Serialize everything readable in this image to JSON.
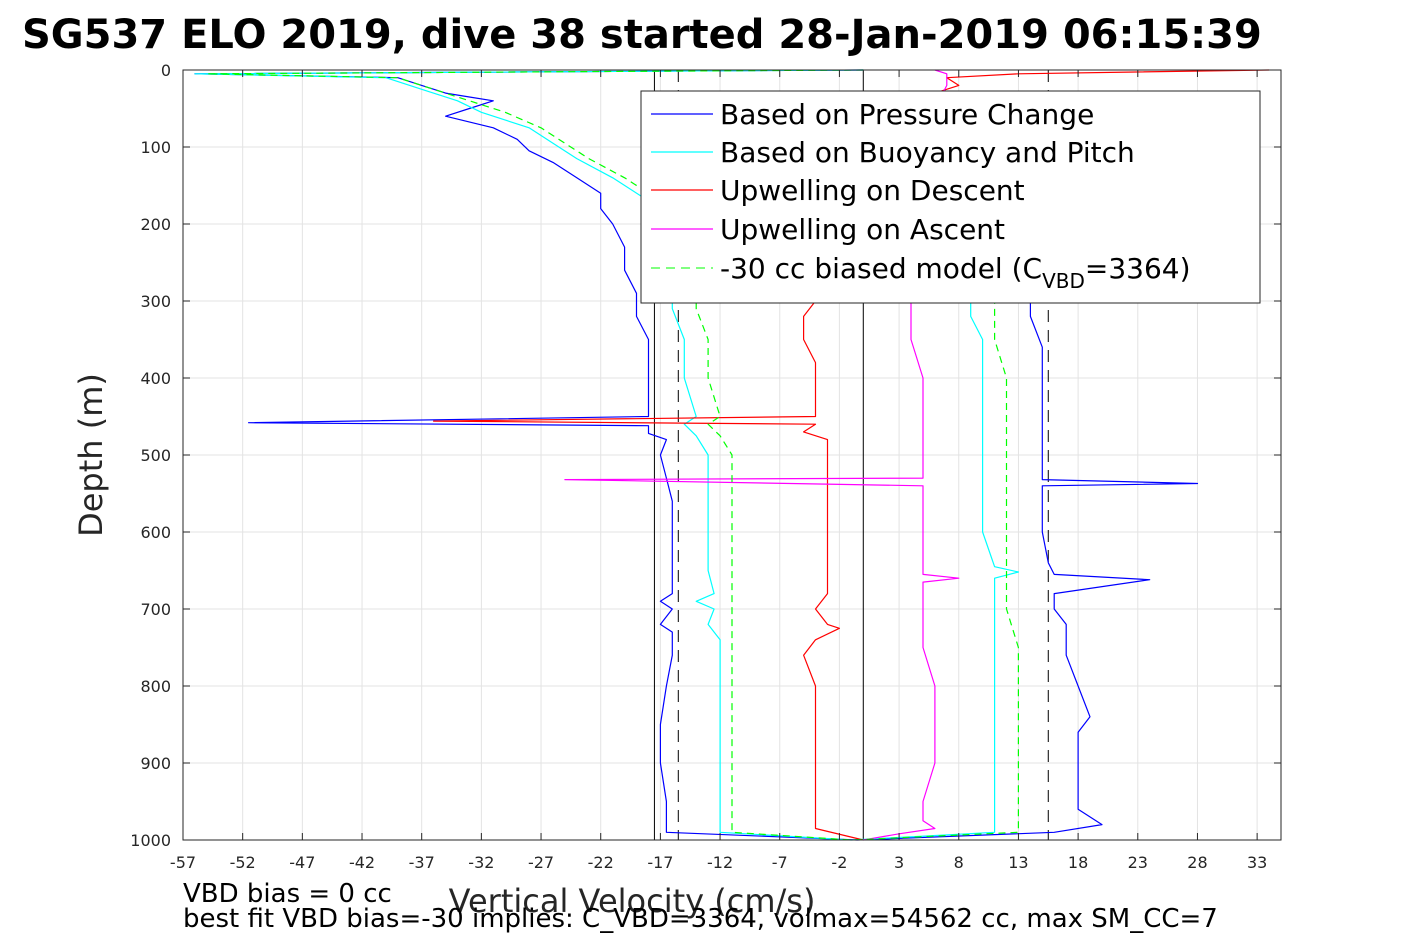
{
  "chart_data": {
    "type": "line",
    "title": "SG537 ELO 2019, dive 38 started 28-Jan-2019 06:15:39",
    "xlabel": "Vertical Velocity (cm/s)",
    "ylabel": "Depth (m)",
    "xlim": [
      -57,
      35
    ],
    "ylim": [
      0,
      1000
    ],
    "y_reversed": true,
    "x_ticks": [
      -57,
      -52,
      -47,
      -42,
      -37,
      -32,
      -27,
      -22,
      -17,
      -12,
      -7,
      -2,
      3,
      8,
      13,
      18,
      23,
      28,
      33
    ],
    "y_ticks": [
      0,
      100,
      200,
      300,
      400,
      500,
      600,
      700,
      800,
      900,
      1000
    ],
    "grid": true,
    "legend_position": "top-right",
    "reference_lines": {
      "solid_x": [
        -17.5,
        0
      ],
      "dashed_x": [
        -15.5,
        15.5
      ]
    },
    "series": [
      {
        "name": "Based on Pressure Change",
        "color": "#0000ff",
        "style": "solid",
        "points": [
          [
            0,
            0
          ],
          [
            -56,
            5
          ],
          [
            -39,
            10
          ],
          [
            -37,
            20
          ],
          [
            -35,
            30
          ],
          [
            -33,
            35
          ],
          [
            -31,
            40
          ],
          [
            -33,
            50
          ],
          [
            -35,
            60
          ],
          [
            -31,
            75
          ],
          [
            -29,
            90
          ],
          [
            -28,
            105
          ],
          [
            -26,
            120
          ],
          [
            -24,
            140
          ],
          [
            -22,
            160
          ],
          [
            -22,
            180
          ],
          [
            -21,
            200
          ],
          [
            -20,
            230
          ],
          [
            -20,
            260
          ],
          [
            -19,
            290
          ],
          [
            -19,
            320
          ],
          [
            -18,
            350
          ],
          [
            -18,
            380
          ],
          [
            -18,
            420
          ],
          [
            -18,
            450
          ],
          [
            -51.5,
            458
          ],
          [
            -18,
            462
          ],
          [
            -18,
            472
          ],
          [
            -16.5,
            480
          ],
          [
            -17,
            500
          ],
          [
            -16.5,
            530
          ],
          [
            -16,
            560
          ],
          [
            -16,
            600
          ],
          [
            -16,
            640
          ],
          [
            -16,
            680
          ],
          [
            -17,
            690
          ],
          [
            -16,
            700
          ],
          [
            -17,
            720
          ],
          [
            -16,
            730
          ],
          [
            -16,
            760
          ],
          [
            -16.5,
            800
          ],
          [
            -17,
            850
          ],
          [
            -17,
            900
          ],
          [
            -16.5,
            950
          ],
          [
            -16.5,
            990
          ],
          [
            -0.5,
            1000
          ],
          [
            16,
            990
          ],
          [
            20,
            980
          ],
          [
            18,
            960
          ],
          [
            18,
            900
          ],
          [
            18,
            860
          ],
          [
            19,
            840
          ],
          [
            18,
            800
          ],
          [
            17,
            760
          ],
          [
            17,
            720
          ],
          [
            16,
            700
          ],
          [
            16,
            680
          ],
          [
            24,
            662
          ],
          [
            16,
            655
          ],
          [
            15.5,
            640
          ],
          [
            15,
            600
          ],
          [
            15,
            560
          ],
          [
            15,
            540
          ],
          [
            28,
            537
          ],
          [
            15,
            532
          ],
          [
            15,
            500
          ],
          [
            15,
            470
          ],
          [
            15,
            440
          ],
          [
            15,
            400
          ],
          [
            15,
            360
          ],
          [
            14,
            320
          ],
          [
            14,
            300
          ]
        ]
      },
      {
        "name": "Based on Buoyancy and Pitch",
        "color": "#00ffff",
        "style": "solid",
        "points": [
          [
            0,
            0
          ],
          [
            -56,
            5
          ],
          [
            -40,
            10
          ],
          [
            -37,
            25
          ],
          [
            -34,
            40
          ],
          [
            -32,
            55
          ],
          [
            -28,
            75
          ],
          [
            -26,
            95
          ],
          [
            -24,
            115
          ],
          [
            -21,
            140
          ],
          [
            -18,
            170
          ],
          [
            -17,
            200
          ],
          [
            -16,
            240
          ],
          [
            -16,
            280
          ],
          [
            -16,
            310
          ],
          [
            -15,
            350
          ],
          [
            -15,
            400
          ],
          [
            -14,
            450
          ],
          [
            -15,
            460
          ],
          [
            -14,
            475
          ],
          [
            -13,
            500
          ],
          [
            -13,
            550
          ],
          [
            -13,
            600
          ],
          [
            -13,
            650
          ],
          [
            -12.5,
            680
          ],
          [
            -14,
            690
          ],
          [
            -12.5,
            700
          ],
          [
            -13,
            720
          ],
          [
            -12,
            740
          ],
          [
            -12,
            780
          ],
          [
            -12,
            820
          ],
          [
            -12,
            860
          ],
          [
            -12,
            900
          ],
          [
            -12,
            950
          ],
          [
            -12,
            990
          ],
          [
            -1,
            1000
          ],
          [
            11,
            990
          ],
          [
            11,
            950
          ],
          [
            11,
            900
          ],
          [
            11,
            850
          ],
          [
            11,
            800
          ],
          [
            11,
            750
          ],
          [
            11,
            700
          ],
          [
            11,
            660
          ],
          [
            13,
            652
          ],
          [
            11,
            645
          ],
          [
            10,
            600
          ],
          [
            10,
            550
          ],
          [
            10,
            500
          ],
          [
            10,
            450
          ],
          [
            10,
            400
          ],
          [
            10,
            350
          ],
          [
            9,
            320
          ],
          [
            9,
            300
          ]
        ]
      },
      {
        "name": "Upwelling on Descent",
        "color": "#ff0000",
        "style": "solid",
        "points": [
          [
            34,
            0
          ],
          [
            13,
            5
          ],
          [
            7,
            10
          ],
          [
            8,
            20
          ],
          [
            6,
            30
          ],
          [
            5,
            40
          ],
          [
            5,
            60
          ],
          [
            4,
            80
          ],
          [
            4,
            100
          ],
          [
            3,
            150
          ],
          [
            2,
            200
          ],
          [
            1,
            250
          ],
          [
            -4,
            300
          ],
          [
            -5,
            320
          ],
          [
            -5,
            350
          ],
          [
            -4,
            380
          ],
          [
            -4,
            420
          ],
          [
            -4,
            450
          ],
          [
            -36,
            456
          ],
          [
            -4,
            460
          ],
          [
            -5,
            470
          ],
          [
            -3,
            480
          ],
          [
            -3,
            500
          ],
          [
            -3,
            550
          ],
          [
            -3,
            600
          ],
          [
            -3,
            650
          ],
          [
            -3,
            680
          ],
          [
            -4,
            700
          ],
          [
            -3,
            720
          ],
          [
            -2,
            725
          ],
          [
            -4,
            740
          ],
          [
            -5,
            760
          ],
          [
            -4,
            800
          ],
          [
            -4,
            850
          ],
          [
            -4,
            900
          ],
          [
            -4,
            950
          ],
          [
            -4,
            985
          ],
          [
            0,
            1000
          ]
        ]
      },
      {
        "name": "Upwelling on Ascent",
        "color": "#ff00ff",
        "style": "solid",
        "points": [
          [
            0,
            1000
          ],
          [
            3,
            992
          ],
          [
            6,
            985
          ],
          [
            5,
            975
          ],
          [
            5,
            950
          ],
          [
            6,
            900
          ],
          [
            6,
            850
          ],
          [
            6,
            800
          ],
          [
            5,
            750
          ],
          [
            5,
            700
          ],
          [
            5,
            665
          ],
          [
            8,
            660
          ],
          [
            5,
            655
          ],
          [
            5,
            640
          ],
          [
            5,
            600
          ],
          [
            5,
            580
          ],
          [
            5,
            540
          ],
          [
            -25,
            532
          ],
          [
            5,
            530
          ],
          [
            5,
            500
          ],
          [
            5,
            450
          ],
          [
            5,
            400
          ],
          [
            4,
            350
          ],
          [
            4,
            300
          ],
          [
            6,
            250
          ],
          [
            7,
            200
          ],
          [
            7,
            150
          ],
          [
            6,
            100
          ],
          [
            6,
            50
          ],
          [
            7,
            20
          ],
          [
            7,
            5
          ],
          [
            6,
            0
          ]
        ]
      },
      {
        "name": "-30 cc biased model (C_VBD=3364)",
        "color": "#00ff00",
        "style": "dashed",
        "points": [
          [
            0,
            0
          ],
          [
            -55,
            5
          ],
          [
            -39,
            10
          ],
          [
            -36,
            25
          ],
          [
            -33,
            40
          ],
          [
            -30,
            55
          ],
          [
            -27,
            75
          ],
          [
            -25,
            95
          ],
          [
            -23,
            115
          ],
          [
            -20,
            140
          ],
          [
            -17,
            170
          ],
          [
            -16,
            200
          ],
          [
            -15,
            240
          ],
          [
            -14,
            280
          ],
          [
            -14,
            310
          ],
          [
            -13,
            350
          ],
          [
            -13,
            400
          ],
          [
            -12,
            450
          ],
          [
            -13,
            460
          ],
          [
            -12,
            475
          ],
          [
            -11,
            500
          ],
          [
            -11,
            550
          ],
          [
            -11,
            600
          ],
          [
            -11,
            650
          ],
          [
            -11,
            700
          ],
          [
            -11,
            750
          ],
          [
            -11,
            800
          ],
          [
            -11,
            850
          ],
          [
            -11,
            900
          ],
          [
            -11,
            950
          ],
          [
            -11,
            990
          ],
          [
            -1,
            1000
          ],
          [
            13,
            990
          ],
          [
            13,
            950
          ],
          [
            13,
            900
          ],
          [
            13,
            850
          ],
          [
            13,
            800
          ],
          [
            13,
            750
          ],
          [
            12,
            700
          ],
          [
            12,
            650
          ],
          [
            12,
            600
          ],
          [
            12,
            550
          ],
          [
            12,
            500
          ],
          [
            12,
            450
          ],
          [
            12,
            400
          ],
          [
            11,
            350
          ],
          [
            11,
            300
          ]
        ]
      }
    ]
  },
  "legend": {
    "items": [
      {
        "label": "Based on Pressure Change"
      },
      {
        "label": "Based on Buoyancy and Pitch"
      },
      {
        "label": "Upwelling on Descent"
      },
      {
        "label": "Upwelling on Ascent"
      }
    ],
    "biased_model": {
      "prefix": "-30 cc biased model (C",
      "subscript": "VBD",
      "suffix": "=3364)"
    }
  },
  "notes": {
    "vbd_bias": "VBD bias = 0 cc",
    "best_fit": "best fit VBD bias=-30 implies: C_VBD=3364, volmax=54562 cc, max SM_CC=7"
  }
}
